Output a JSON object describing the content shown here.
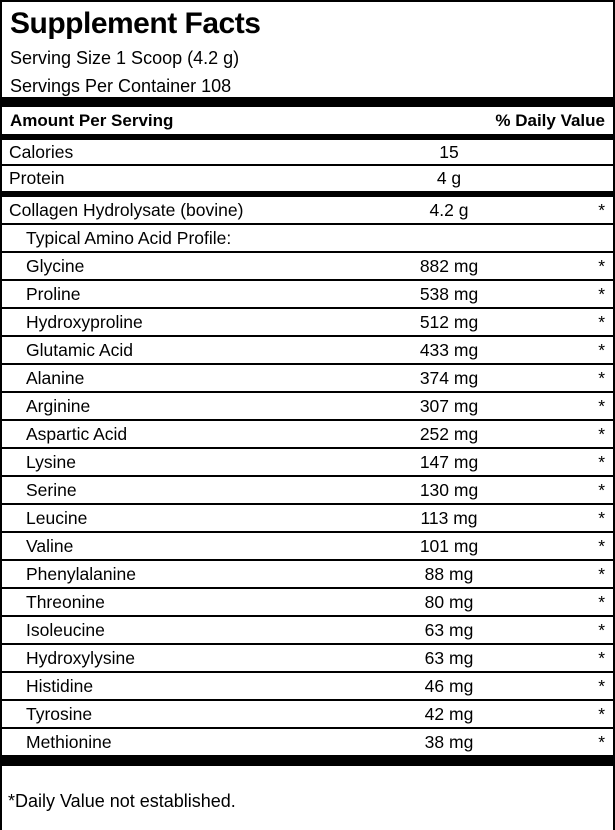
{
  "label": {
    "title": "Supplement Facts",
    "serving_size": "Serving Size 1 Scoop (4.2 g)",
    "servings_per_container": "Servings Per Container 108",
    "columns": {
      "amount": "Amount Per Serving",
      "daily_value": "% Daily Value"
    },
    "rows": [
      {
        "name": "Calories",
        "amount": "15",
        "dv": "",
        "indent": false
      },
      {
        "name": "Protein",
        "amount": "4 g",
        "dv": "",
        "indent": false,
        "divider": "heavy"
      },
      {
        "name": "Collagen Hydrolysate (bovine)",
        "amount": "4.2 g",
        "dv": "*",
        "indent": false
      },
      {
        "name": "Typical Amino Acid Profile:",
        "amount": "",
        "dv": "",
        "indent": true
      },
      {
        "name": "Glycine",
        "amount": "882 mg",
        "dv": "*",
        "indent": true
      },
      {
        "name": "Proline",
        "amount": "538 mg",
        "dv": "*",
        "indent": true
      },
      {
        "name": "Hydroxyproline",
        "amount": "512 mg",
        "dv": "*",
        "indent": true
      },
      {
        "name": "Glutamic Acid",
        "amount": "433 mg",
        "dv": "*",
        "indent": true
      },
      {
        "name": "Alanine",
        "amount": "374 mg",
        "dv": "*",
        "indent": true
      },
      {
        "name": "Arginine",
        "amount": "307 mg",
        "dv": "*",
        "indent": true
      },
      {
        "name": "Aspartic Acid",
        "amount": "252 mg",
        "dv": "*",
        "indent": true
      },
      {
        "name": "Lysine",
        "amount": "147 mg",
        "dv": "*",
        "indent": true
      },
      {
        "name": "Serine",
        "amount": "130 mg",
        "dv": "*",
        "indent": true
      },
      {
        "name": "Leucine",
        "amount": "113 mg",
        "dv": "*",
        "indent": true
      },
      {
        "name": "Valine",
        "amount": "101 mg",
        "dv": "*",
        "indent": true
      },
      {
        "name": "Phenylalanine",
        "amount": "88 mg",
        "dv": "*",
        "indent": true
      },
      {
        "name": "Threonine",
        "amount": "80 mg",
        "dv": "*",
        "indent": true
      },
      {
        "name": "Isoleucine",
        "amount": "63 mg",
        "dv": "*",
        "indent": true
      },
      {
        "name": "Hydroxylysine",
        "amount": "63 mg",
        "dv": "*",
        "indent": true
      },
      {
        "name": "Histidine",
        "amount": "46 mg",
        "dv": "*",
        "indent": true
      },
      {
        "name": "Tyrosine",
        "amount": "42 mg",
        "dv": "*",
        "indent": true
      },
      {
        "name": "Methionine",
        "amount": "38 mg",
        "dv": "*",
        "indent": true
      }
    ],
    "footnote": "*Daily Value not established.",
    "colors": {
      "ink": "#000000",
      "background": "#ffffff"
    }
  }
}
